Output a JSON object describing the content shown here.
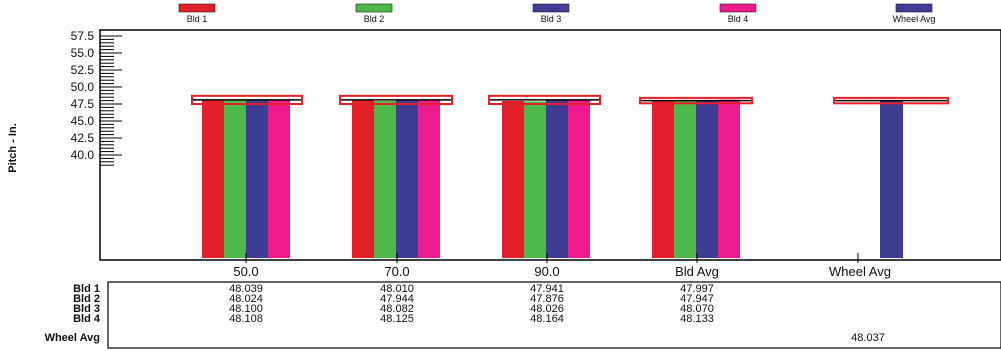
{
  "chart_data": {
    "type": "bar",
    "categories": [
      "50.0",
      "70.0",
      "90.0",
      "Bld Avg",
      "Wheel Avg"
    ],
    "ylabel": "Pitch  -  In.",
    "ylim": [
      38.5,
      57.5
    ],
    "yticks": [
      "57.5",
      "55.0",
      "52.5",
      "50.0",
      "47.5",
      "45.0",
      "42.5",
      "40.0"
    ],
    "series": [
      {
        "name": "Bld 1",
        "color": "#e3202a",
        "values": [
          48.039,
          48.01,
          47.941,
          47.997,
          null
        ]
      },
      {
        "name": "Bld 2",
        "color": "#4fb84a",
        "values": [
          48.024,
          47.944,
          47.876,
          47.947,
          null
        ]
      },
      {
        "name": "Bld 3",
        "color": "#3f3c94",
        "values": [
          48.1,
          48.082,
          48.026,
          48.07,
          null
        ]
      },
      {
        "name": "Bld 4",
        "color": "#ec1a8a",
        "values": [
          48.108,
          48.125,
          48.164,
          48.133,
          null
        ]
      },
      {
        "name": "Wheel Avg",
        "color": "#3f3c94",
        "values": [
          null,
          null,
          null,
          null,
          48.037
        ]
      }
    ],
    "tolerance_boxes": [
      {
        "category": "50.0",
        "low": 47.5,
        "high": 48.7
      },
      {
        "category": "70.0",
        "low": 47.5,
        "high": 48.7
      },
      {
        "category": "90.0",
        "low": 47.5,
        "high": 48.7
      },
      {
        "category": "Bld Avg",
        "low": 47.6,
        "high": 48.4
      },
      {
        "category": "Wheel Avg",
        "low": 47.6,
        "high": 48.4
      }
    ],
    "table": {
      "row_labels": [
        "Bld 1",
        "Bld 2",
        "Bld 3",
        "Bld 4",
        "Wheel Avg"
      ],
      "columns": [
        [
          "48.039",
          "48.024",
          "48.100",
          "48.108"
        ],
        [
          "48.010",
          "47.944",
          "48.082",
          "48.125"
        ],
        [
          "47.941",
          "47.876",
          "48.026",
          "48.164"
        ],
        [
          "47.997",
          "47.947",
          "48.070",
          "48.133"
        ]
      ],
      "wheel_avg": "48.037"
    }
  }
}
